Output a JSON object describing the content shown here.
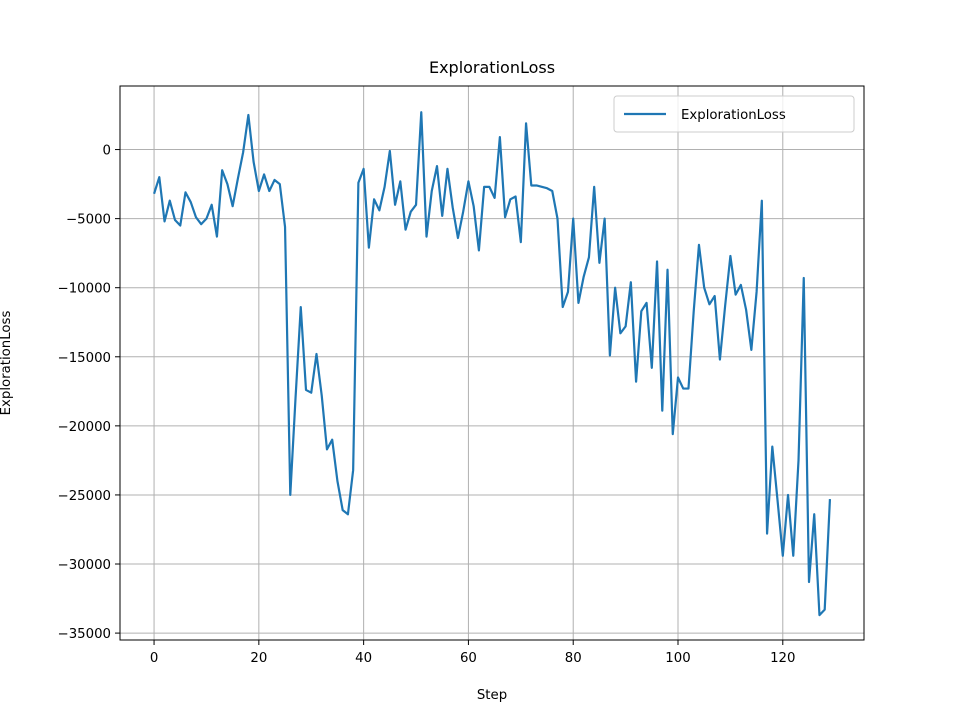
{
  "chart_data": {
    "type": "line",
    "title": "ExplorationLoss",
    "xlabel": "Step",
    "ylabel": "ExplorationLoss",
    "xlim": [
      -6.5,
      135.5
    ],
    "ylim": [
      -35500,
      4600
    ],
    "xticks": [
      0,
      20,
      40,
      60,
      80,
      100,
      120
    ],
    "yticks": [
      0,
      -5000,
      -10000,
      -15000,
      -20000,
      -25000,
      -30000,
      -35000
    ],
    "ytick_labels": [
      "0",
      "−5000",
      "−10000",
      "−15000",
      "−20000",
      "−25000",
      "−30000",
      "−35000"
    ],
    "grid": true,
    "legend_position": "top-right",
    "color": "#1f77b4",
    "series": [
      {
        "name": "ExplorationLoss",
        "values": [
          -3200,
          -2000,
          -5200,
          -3700,
          -5100,
          -5500,
          -3100,
          -3800,
          -4900,
          -5400,
          -5000,
          -4000,
          -6300,
          -1500,
          -2500,
          -4100,
          -2100,
          -200,
          2500,
          -900,
          -3000,
          -1800,
          -3000,
          -2200,
          -2500,
          -5600,
          -25000,
          -18000,
          -11400,
          -17400,
          -17600,
          -14800,
          -17800,
          -21700,
          -21000,
          -24000,
          -26100,
          -26400,
          -23200,
          -2400,
          -1400,
          -7100,
          -3600,
          -4400,
          -2700,
          -100,
          -4000,
          -2300,
          -5800,
          -4500,
          -4000,
          2700,
          -6300,
          -3000,
          -1200,
          -4800,
          -1400,
          -4200,
          -6400,
          -4500,
          -2300,
          -4100,
          -7300,
          -2700,
          -2700,
          -3500,
          900,
          -4900,
          -3600,
          -3400,
          -6700,
          1900,
          -2600,
          -2600,
          -2700,
          -2800,
          -3000,
          -5000,
          -11400,
          -10300,
          -5000,
          -11100,
          -9200,
          -7800,
          -2700,
          -8200,
          -5000,
          -14900,
          -10000,
          -13300,
          -12800,
          -9600,
          -16800,
          -11700,
          -11100,
          -15800,
          -8100,
          -18900,
          -8700,
          -20600,
          -16500,
          -17300,
          -17300,
          -11700,
          -6900,
          -10000,
          -11200,
          -10600,
          -15200,
          -11300,
          -7700,
          -10500,
          -9800,
          -11600,
          -14500,
          -10300,
          -3700,
          -27800,
          -21500,
          -25400,
          -29400,
          -25000,
          -29400,
          -22500,
          -9300,
          -31300,
          -26400,
          -33700,
          -33300,
          -25300
        ]
      }
    ]
  }
}
